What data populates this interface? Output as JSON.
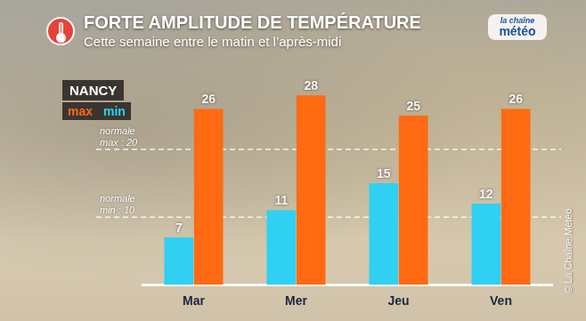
{
  "chart_data": {
    "type": "bar",
    "title": "FORTE AMPLITUDE DE TEMPÉRATURE",
    "subtitle": "Cette semaine entre le matin et l’après-midi",
    "legend_title": "NANCY",
    "legend": "top-left",
    "categories": [
      "Mar",
      "Mer",
      "Jeu",
      "Ven"
    ],
    "series": [
      {
        "name": "max",
        "color": "#ff6a13",
        "values": [
          26,
          28,
          25,
          26
        ]
      },
      {
        "name": "min",
        "color": "#2fd0f2",
        "values": [
          7,
          11,
          15,
          12
        ]
      }
    ],
    "ylim": [
      0,
      30
    ],
    "tick_labels": "x",
    "grid": false,
    "data_labels": true,
    "annotations": [
      {
        "y": 20,
        "text": [
          "normale",
          "max : 20"
        ]
      },
      {
        "y": 10,
        "text": [
          "normale",
          "min : 10"
        ]
      }
    ],
    "logo": [
      "la chaîne",
      "météo"
    ],
    "source": "© La Chaîne Météo"
  }
}
